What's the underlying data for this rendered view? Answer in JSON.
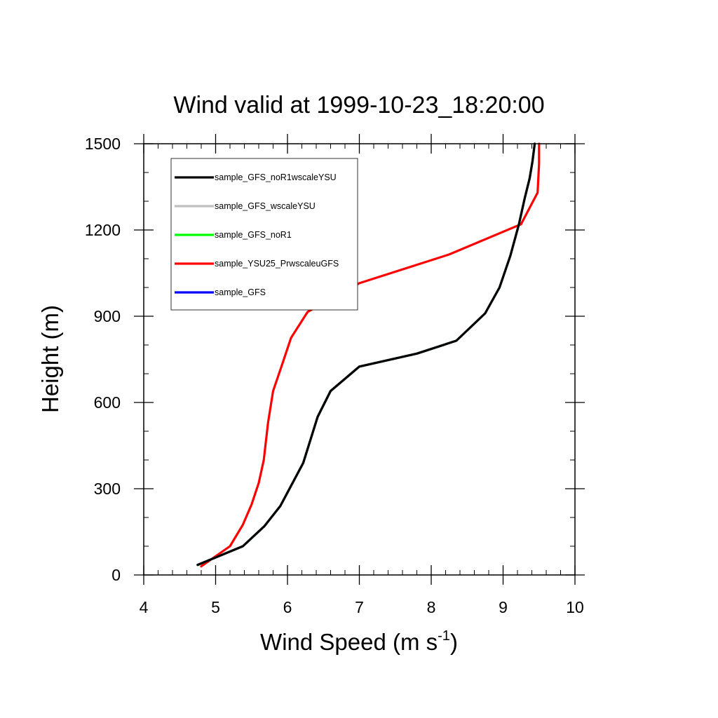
{
  "chart_data": {
    "type": "line",
    "title": "Wind valid at 1999-10-23_18:20:00",
    "xlabel": "Wind Speed (m s",
    "xlabel_sup": "-1",
    "xlabel_close": ")",
    "ylabel": "Height (m)",
    "xlim": [
      4,
      10
    ],
    "ylim": [
      0,
      1500
    ],
    "x_ticks": [
      4,
      5,
      6,
      7,
      8,
      9,
      10
    ],
    "y_ticks": [
      0,
      300,
      600,
      900,
      1200,
      1500
    ],
    "x_minor_step": 0.2,
    "y_minor_step": 100,
    "grid": false,
    "legend_position": "top-left",
    "series": [
      {
        "name": "sample_GFS_noR1wscaleYSU",
        "color": "#000000",
        "x": [
          4.75,
          5.38,
          5.68,
          5.9,
          6.05,
          6.22,
          6.42,
          6.6,
          7.0,
          7.8,
          8.35,
          8.75,
          8.95,
          9.1,
          9.22,
          9.3,
          9.37,
          9.41,
          9.44
        ],
        "y": [
          35,
          100,
          170,
          240,
          310,
          390,
          550,
          640,
          725,
          770,
          815,
          910,
          1000,
          1110,
          1220,
          1310,
          1380,
          1440,
          1500
        ]
      },
      {
        "name": "sample_GFS_wscaleYSU",
        "color": "#c0c0c0",
        "x": [
          4.75,
          5.38,
          5.68,
          5.9,
          6.05,
          6.22,
          6.42,
          6.6,
          7.0,
          7.8,
          8.35,
          8.75,
          8.95,
          9.1,
          9.22,
          9.3,
          9.37,
          9.41,
          9.44
        ],
        "y": [
          35,
          100,
          170,
          240,
          310,
          390,
          550,
          640,
          725,
          770,
          815,
          910,
          1000,
          1110,
          1220,
          1310,
          1380,
          1440,
          1500
        ]
      },
      {
        "name": "sample_GFS_noR1",
        "color": "#00ff00",
        "x": [
          4.75,
          5.38,
          5.68,
          5.9,
          6.05,
          6.22,
          6.42,
          6.6,
          7.0,
          7.8,
          8.35,
          8.75,
          8.95,
          9.1,
          9.22,
          9.3,
          9.37,
          9.41,
          9.44
        ],
        "y": [
          35,
          100,
          170,
          240,
          310,
          390,
          550,
          640,
          725,
          770,
          815,
          910,
          1000,
          1110,
          1220,
          1310,
          1380,
          1440,
          1500
        ]
      },
      {
        "name": "sample_YSU25_PrwscaleuGFS",
        "color": "#ff0000",
        "x": [
          4.8,
          5.2,
          5.38,
          5.5,
          5.6,
          5.67,
          5.73,
          5.8,
          5.93,
          6.05,
          6.28,
          7.0,
          8.25,
          9.25,
          9.48,
          9.5,
          9.5
        ],
        "y": [
          30,
          100,
          175,
          245,
          320,
          400,
          530,
          640,
          735,
          825,
          915,
          1015,
          1115,
          1220,
          1330,
          1430,
          1500
        ]
      },
      {
        "name": "sample_GFS",
        "color": "#0000ff",
        "x": [
          4.75,
          5.38,
          5.68,
          5.9,
          6.05,
          6.22,
          6.42,
          6.6,
          7.0,
          7.8,
          8.35,
          8.75,
          8.95,
          9.1,
          9.22,
          9.3,
          9.37,
          9.41,
          9.44
        ],
        "y": [
          35,
          100,
          170,
          240,
          310,
          390,
          550,
          640,
          725,
          770,
          815,
          910,
          1000,
          1110,
          1220,
          1310,
          1380,
          1440,
          1500
        ]
      }
    ],
    "draw_order": [
      4,
      2,
      3,
      1,
      0
    ]
  }
}
